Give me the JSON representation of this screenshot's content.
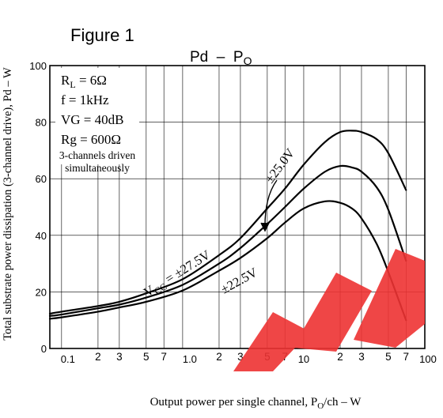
{
  "figure_label": "Figure 1",
  "chart_data": {
    "type": "line",
    "title": "Pd  –  P",
    "title_subscript": "O",
    "xlabel": "Output power per single channel, P",
    "xlabel_sub": "O",
    "xlabel_tail": "/ch – W",
    "ylabel": "Total substrate power dissipation (3-channel drive), Pd – W",
    "xscale": "log",
    "xlim": [
      0.08,
      100
    ],
    "ylim": [
      0,
      100
    ],
    "grid": true,
    "y_ticks": [
      "0",
      "20",
      "40",
      "60",
      "80",
      "100"
    ],
    "x_major_ticks": [
      "0.1",
      "1.0",
      "10",
      "100"
    ],
    "x_minor_ticks": [
      "2",
      "3",
      "5",
      "7",
      "2",
      "3",
      "5",
      "7",
      "2",
      "3",
      "5",
      "7"
    ],
    "conditions": [
      "R",
      "f = 1kHz",
      "VG = 40dB",
      "Rg = 600Ω"
    ],
    "condition_rl_sub": "L",
    "condition_rl_value": " = 6Ω",
    "note": [
      "3-channels driven",
      "simultaneously"
    ],
    "series": [
      {
        "name": "V",
        "x": [
          0.08,
          0.1,
          0.2,
          0.3,
          0.5,
          1.0,
          2.0,
          3.0,
          5.0,
          7.0,
          10.0,
          15.0,
          20.0,
          25.0,
          30.0,
          40.0,
          50.0,
          70.0
        ],
        "y": [
          12.3,
          13.0,
          15.0,
          16.5,
          19.5,
          24.5,
          33.0,
          39.0,
          49.5,
          56.5,
          65.0,
          73.0,
          76.5,
          77.0,
          76.5,
          74.0,
          69.0,
          56.0
        ]
      },
      {
        "name": "±25.0V",
        "x": [
          0.08,
          0.1,
          0.2,
          0.3,
          0.5,
          1.0,
          2.0,
          3.0,
          5.0,
          7.0,
          10.0,
          15.0,
          20.0,
          25.0,
          30.0,
          40.0,
          50.0,
          70.0
        ],
        "y": [
          11.5,
          12.0,
          14.2,
          15.5,
          18.0,
          22.5,
          30.0,
          35.5,
          44.0,
          50.0,
          56.5,
          62.5,
          64.5,
          64.0,
          62.5,
          57.0,
          49.0,
          31.0
        ]
      },
      {
        "name": "±22.5V",
        "x": [
          0.08,
          0.1,
          0.2,
          0.3,
          0.5,
          1.0,
          2.0,
          3.0,
          5.0,
          7.0,
          10.0,
          15.0,
          20.0,
          25.0,
          30.0,
          40.0,
          50.0,
          70.0
        ],
        "y": [
          10.5,
          11.0,
          13.0,
          14.5,
          16.5,
          20.5,
          27.5,
          32.0,
          39.0,
          44.5,
          49.5,
          52.0,
          51.5,
          49.5,
          46.0,
          37.0,
          27.0,
          10.0
        ]
      }
    ],
    "series_label_top_sub": "CC",
    "series_label_top_tail": " = ±27.5V"
  }
}
